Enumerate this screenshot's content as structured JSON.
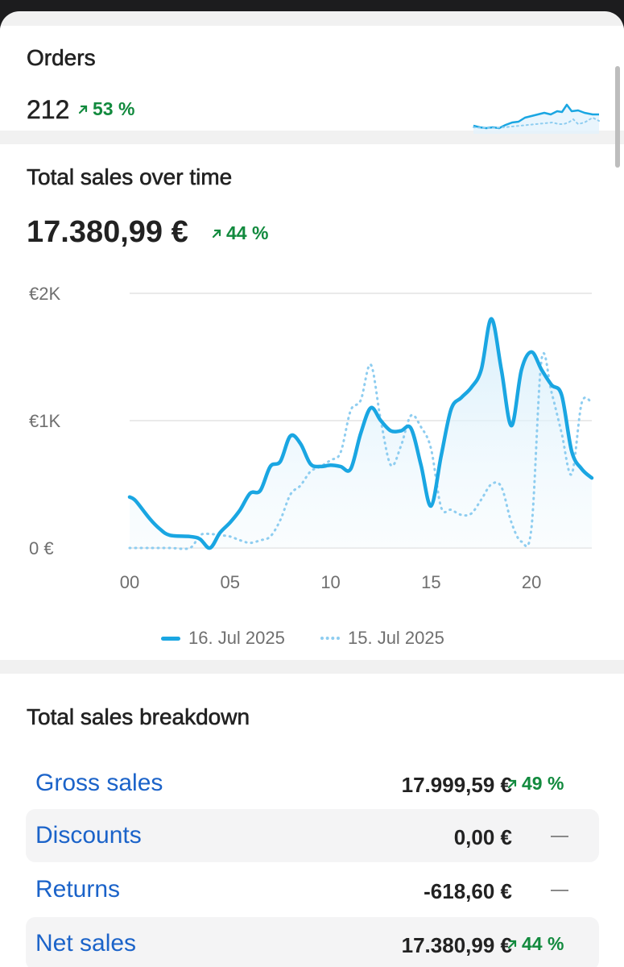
{
  "orders": {
    "title": "Orders",
    "value": "212",
    "trend": "53 %",
    "trend_icon": "arrow-up-right-icon"
  },
  "sales_over_time": {
    "title": "Total sales over time",
    "value": "17.380,99 €",
    "trend": "44 %",
    "trend_icon": "arrow-up-right-icon"
  },
  "chart_data": {
    "type": "line",
    "y_tick_labels": [
      "€2K",
      "€1K",
      "0 €"
    ],
    "x_tick_labels": [
      "00",
      "05",
      "10",
      "15",
      "20"
    ],
    "ylim": [
      0,
      2000
    ],
    "xlim": [
      0,
      23
    ],
    "grid": true,
    "legend_placement": "bottom",
    "series": [
      {
        "name": "16. Jul 2025",
        "style": "solid",
        "color": "#1aa6e2",
        "x": [
          0,
          0.3,
          1,
          1.5,
          2,
          3,
          3.5,
          4,
          4.5,
          5,
          5.5,
          6,
          6.5,
          7,
          7.5,
          8,
          8.5,
          9,
          9.5,
          10,
          10.5,
          11,
          11.5,
          12,
          12.5,
          13,
          13.5,
          14,
          14.5,
          15,
          15.5,
          16,
          16.5,
          17,
          17.5,
          18,
          18.5,
          19,
          19.5,
          20,
          20.5,
          21,
          21.5,
          22,
          22.5,
          23
        ],
        "y": [
          400,
          370,
          230,
          150,
          100,
          90,
          70,
          0,
          120,
          200,
          300,
          430,
          450,
          640,
          680,
          880,
          820,
          660,
          640,
          650,
          640,
          620,
          900,
          1100,
          1000,
          920,
          920,
          940,
          650,
          330,
          720,
          1090,
          1180,
          1260,
          1400,
          1800,
          1400,
          960,
          1400,
          1540,
          1400,
          1280,
          1200,
          760,
          620,
          550
        ]
      },
      {
        "name": "15. Jul 2025",
        "style": "dotted",
        "color": "#8ecdf0",
        "x": [
          0,
          1,
          2,
          3,
          3.5,
          4,
          4.5,
          5,
          5.5,
          6,
          6.5,
          7,
          7.5,
          8,
          8.5,
          9,
          9.5,
          10,
          10.5,
          11,
          11.5,
          12,
          12.5,
          13,
          13.5,
          14,
          14.5,
          15,
          15.5,
          16,
          16.5,
          17,
          17.5,
          18,
          18.5,
          19,
          19.5,
          20,
          20.5,
          21,
          21.5,
          22,
          22.5,
          23
        ],
        "y": [
          0,
          0,
          0,
          0,
          100,
          110,
          100,
          90,
          60,
          40,
          60,
          90,
          220,
          420,
          490,
          600,
          640,
          690,
          750,
          1080,
          1160,
          1440,
          1000,
          650,
          800,
          1040,
          950,
          780,
          320,
          300,
          260,
          270,
          380,
          500,
          480,
          200,
          50,
          160,
          1480,
          1220,
          900,
          580,
          1140,
          1140
        ]
      }
    ]
  },
  "breakdown": {
    "title": "Total sales breakdown",
    "rows": [
      {
        "label": "Gross sales",
        "value": "17.999,59 €",
        "trend": "49 %",
        "trend_icon": "arrow-up-right-icon"
      },
      {
        "label": "Discounts",
        "value": "0,00 €",
        "trend": "",
        "trend_icon": "dash-icon"
      },
      {
        "label": "Returns",
        "value": "-618,60 €",
        "trend": "",
        "trend_icon": "dash-icon"
      },
      {
        "label": "Net sales",
        "value": "17.380,99 €",
        "trend": "44 %",
        "trend_icon": "arrow-up-right-icon"
      }
    ]
  },
  "colors": {
    "accent_line": "#1aa6e2",
    "comparison_line": "#8ecdf0",
    "positive_trend": "#128a3e",
    "link_blue": "#1b63c9"
  }
}
